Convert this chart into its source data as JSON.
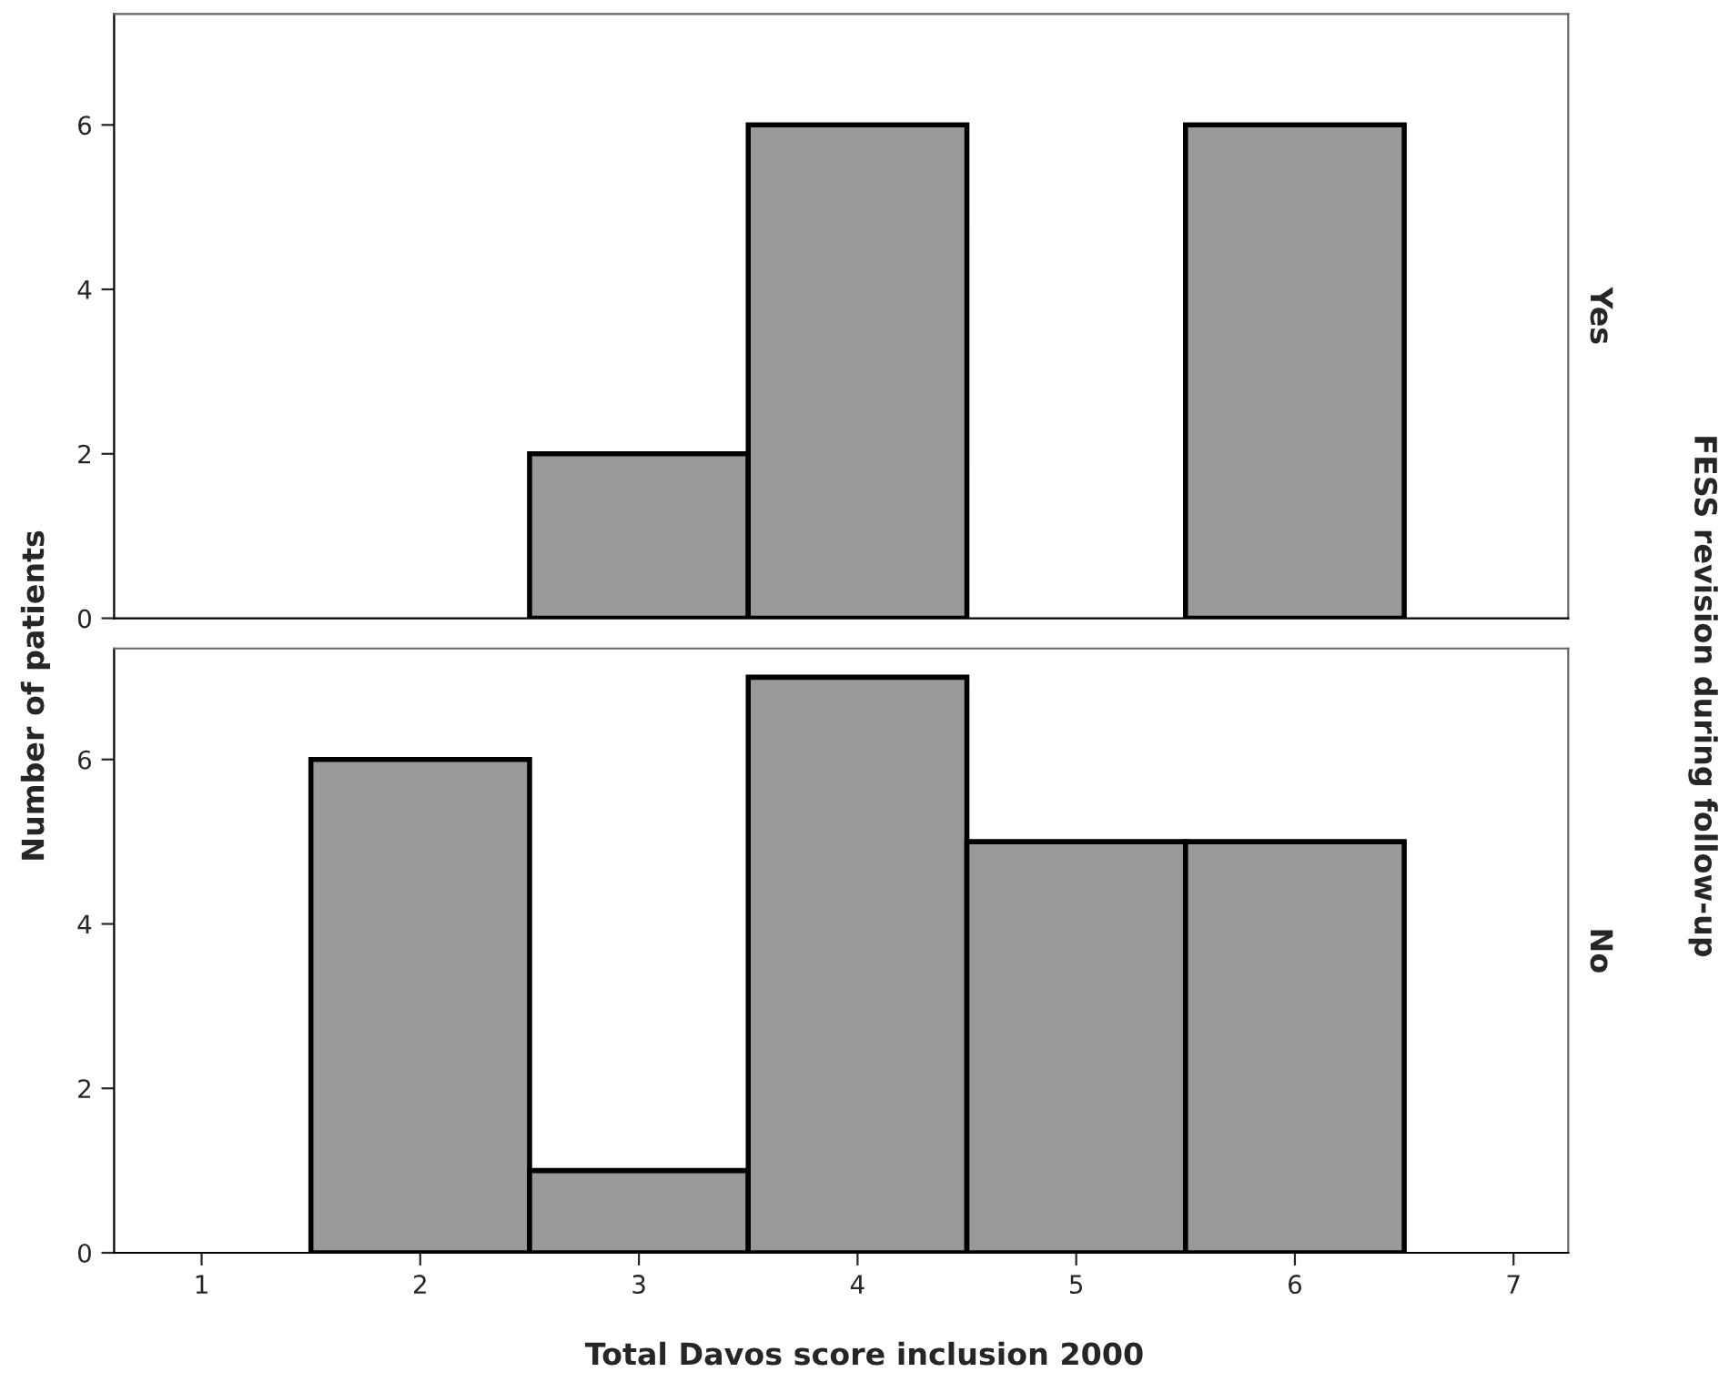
{
  "chart_data": [
    {
      "type": "histogram",
      "ylabel": "Number of patients",
      "y2label": "Yes",
      "annotations": [
        "FESS revision during follow-up"
      ],
      "bins": [
        1.5,
        2.5,
        3.5,
        4.5,
        5.5,
        6.5
      ],
      "values": [
        0,
        2,
        6,
        0,
        6
      ],
      "color": "#999999",
      "xlim": [
        0.6,
        7.25
      ],
      "xticks": [
        1,
        2,
        3,
        4,
        5,
        6,
        7
      ],
      "ylim": [
        0,
        7.35
      ],
      "yticks": [
        0,
        2,
        4,
        6
      ],
      "tick_labels": "y",
      "grid": false,
      "legend": false
    },
    {
      "type": "histogram",
      "xlabel": "Total Davos score inclusion 2000",
      "y2label": "No",
      "bins": [
        1.5,
        2.5,
        3.5,
        4.5,
        5.5,
        6.5
      ],
      "values": [
        6,
        1,
        7,
        5,
        5
      ],
      "color": "#999999",
      "xlim": [
        0.6,
        7.25
      ],
      "xticks": [
        1,
        2,
        3,
        4,
        5,
        6,
        7
      ],
      "ylim": [
        0,
        7.35
      ],
      "yticks": [
        0,
        2,
        4,
        6
      ],
      "grid": false,
      "legend": false
    }
  ]
}
